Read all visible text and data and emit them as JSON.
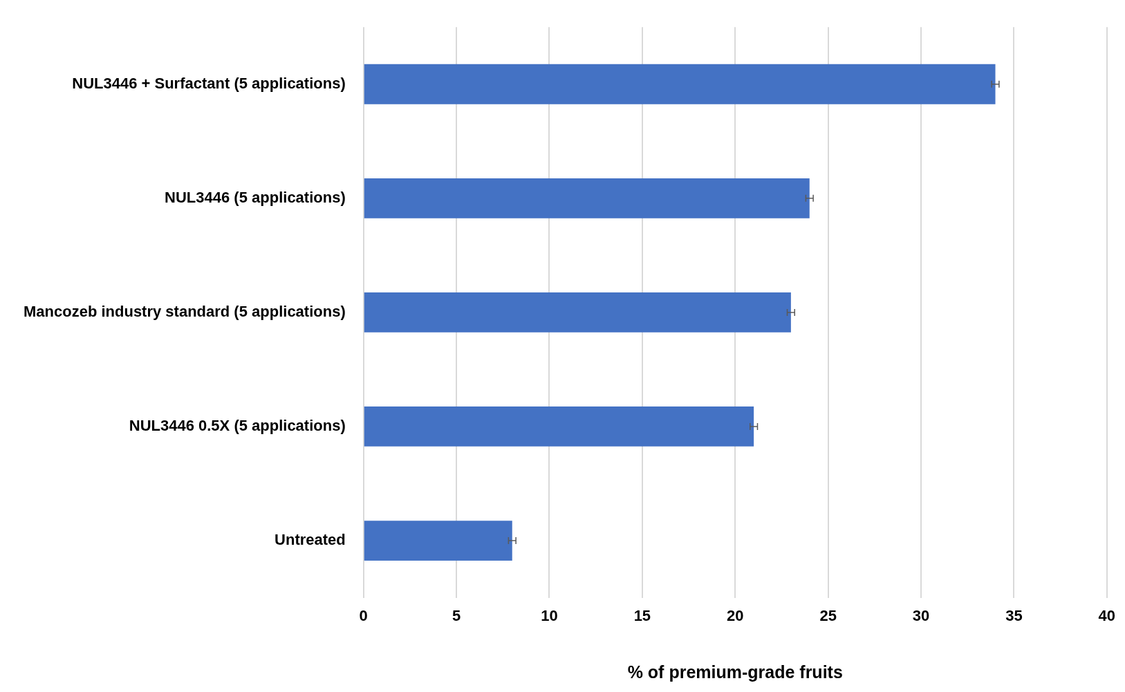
{
  "chart_data": {
    "type": "bar",
    "orientation": "horizontal",
    "xlabel": "% of premium-grade fruits",
    "categories": [
      "NUL3446 + Surfactant (5 applications)",
      "NUL3446 (5 applications)",
      "Mancozeb industry standard (5 applications)",
      "NUL3446 0.5X (5 applications)",
      "Untreated"
    ],
    "values": [
      34,
      24,
      23,
      21,
      8
    ],
    "errors": [
      0.2,
      0.2,
      0.2,
      0.2,
      0.2
    ],
    "color": "#4472c4",
    "xlim": [
      0,
      40
    ],
    "xticks": [
      0,
      5,
      10,
      15,
      20,
      25,
      30,
      35,
      40
    ],
    "grid": "x",
    "legend": false
  }
}
